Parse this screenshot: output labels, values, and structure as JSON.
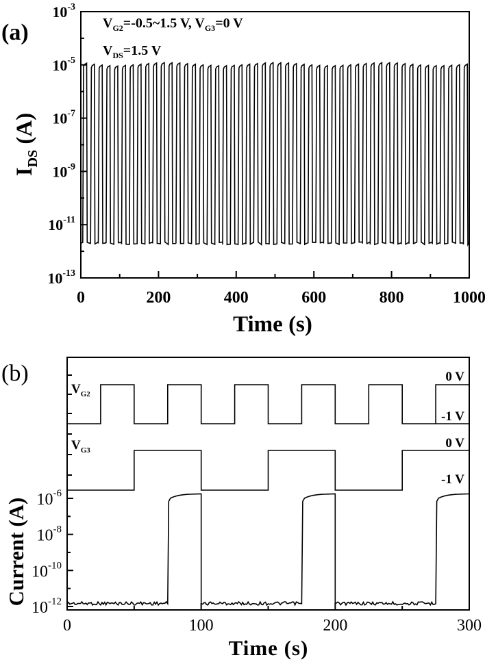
{
  "chart_data": [
    {
      "type": "line",
      "panel_label": "(a)",
      "annotation_line1": {
        "v": "V",
        "g2_sub": "G2",
        "g2_text": "=-0.5~1.5 V, V",
        "g3_sub": "G3",
        "g3_text": "=0 V"
      },
      "annotation_line2": {
        "v": "V",
        "sub": "DS",
        "text": "=1.5 V"
      },
      "xlabel": "Time (s)",
      "ylabel": {
        "main": "I",
        "sub": "DS",
        "unit": " (A)"
      },
      "xlim": [
        0,
        1000
      ],
      "ylim_exp": [
        -13,
        -3
      ],
      "yscale": "log",
      "xticks": [
        {
          "v": 0,
          "label": "0"
        },
        {
          "v": 200,
          "label": "200"
        },
        {
          "v": 400,
          "label": "400"
        },
        {
          "v": 600,
          "label": "600"
        },
        {
          "v": 800,
          "label": "800"
        },
        {
          "v": 1000,
          "label": "1000"
        }
      ],
      "yticks": [
        {
          "exp": -3,
          "label": "10",
          "sup": "-3"
        },
        {
          "exp": -5,
          "label": "10",
          "sup": "-5"
        },
        {
          "exp": -7,
          "label": "10",
          "sup": "-7"
        },
        {
          "exp": -9,
          "label": "10",
          "sup": "-9"
        },
        {
          "exp": -11,
          "label": "10",
          "sup": "-11"
        },
        {
          "exp": -13,
          "label": "10",
          "sup": "-13"
        }
      ],
      "series": [
        {
          "period_s": 20,
          "on_start_s": 5,
          "on_current_A": 1e-05,
          "off_current_A": 2e-12,
          "cycles": 50
        }
      ]
    },
    {
      "type": "line",
      "panel_label": "(b)",
      "xlabel": "Time (s)",
      "ylabel": "Current (A)",
      "xlim": [
        0,
        300
      ],
      "xticks": [
        {
          "v": 0,
          "label": "0"
        },
        {
          "v": 100,
          "label": "100"
        },
        {
          "v": 200,
          "label": "200"
        },
        {
          "v": 300,
          "label": "300"
        }
      ],
      "current_ylim_exp": [
        -12,
        -6
      ],
      "yscale": "log",
      "yticks": [
        {
          "exp": -6,
          "label": "10",
          "sup": "-6"
        },
        {
          "exp": -8,
          "label": "10",
          "sup": "-8"
        },
        {
          "exp": -10,
          "label": "10",
          "sup": "-10"
        },
        {
          "exp": -12,
          "label": "10",
          "sup": "-12"
        }
      ],
      "vg2": {
        "label": "V",
        "sub": "G2",
        "high_label": "0 V",
        "low_label": "-1 V",
        "period_s": 50,
        "high_start_s": 0,
        "high_end_s": 25,
        "start_s": 25
      },
      "vg3": {
        "label": "V",
        "sub": "G3",
        "high_label": "0 V",
        "low_label": "-1 V",
        "period_s": 100,
        "high_start_s": 50,
        "high_end_s": 100
      },
      "current": {
        "on_intervals_s": [
          [
            75,
            100
          ],
          [
            175,
            200
          ],
          [
            275,
            300
          ]
        ],
        "on_current_A": 1.5e-06,
        "off_current_A": 1e-12
      }
    }
  ]
}
